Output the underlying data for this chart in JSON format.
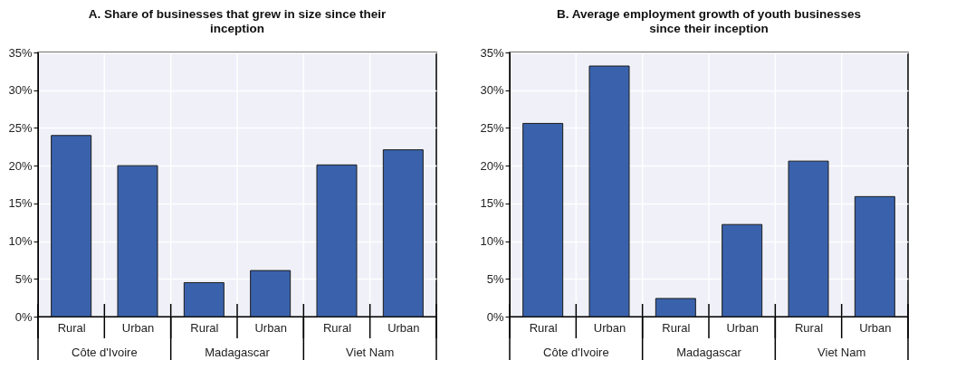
{
  "chart_data": [
    {
      "type": "bar",
      "title": "A. Share of businesses that grew in size since their inception",
      "categories": [
        "Rural",
        "Urban",
        "Rural",
        "Urban",
        "Rural",
        "Urban"
      ],
      "values": [
        24,
        20,
        4.5,
        6.1,
        20.1,
        22.1
      ],
      "color": "#3a62ac",
      "ylim": [
        0,
        35
      ],
      "yticks": [
        {
          "value": 0,
          "label": "0%"
        },
        {
          "value": 5,
          "label": "5%"
        },
        {
          "value": 10,
          "label": "10%"
        },
        {
          "value": 15,
          "label": "15%"
        },
        {
          "value": 20,
          "label": "20%"
        },
        {
          "value": 25,
          "label": "25%"
        },
        {
          "value": 30,
          "label": "30%"
        },
        {
          "value": 35,
          "label": "35%"
        }
      ],
      "grid": true,
      "annotations": [
        "Côte d'Ivoire",
        "Madagascar",
        "Viet Nam"
      ]
    },
    {
      "type": "bar",
      "title": "B. Average employment growth of youth businesses since their inception",
      "categories": [
        "Rural",
        "Urban",
        "Rural",
        "Urban",
        "Rural",
        "Urban"
      ],
      "values": [
        25.6,
        33.2,
        2.4,
        12.2,
        20.6,
        15.9
      ],
      "color": "#3a62ac",
      "ylim": [
        0,
        35
      ],
      "yticks": [
        {
          "value": 0,
          "label": "0%"
        },
        {
          "value": 5,
          "label": "5%"
        },
        {
          "value": 10,
          "label": "10%"
        },
        {
          "value": 15,
          "label": "15%"
        },
        {
          "value": 20,
          "label": "20%"
        },
        {
          "value": 25,
          "label": "25%"
        },
        {
          "value": 30,
          "label": "30%"
        },
        {
          "value": 35,
          "label": "35%"
        }
      ],
      "grid": true,
      "annotations": [
        "Côte d'Ivoire",
        "Madagascar",
        "Viet Nam"
      ]
    }
  ]
}
